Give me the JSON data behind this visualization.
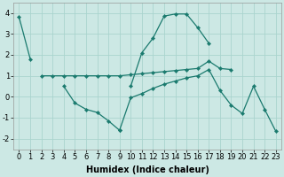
{
  "xlabel": "Humidex (Indice chaleur)",
  "background_color": "#cce8e4",
  "grid_color": "#aad4ce",
  "line_color": "#1a7a6e",
  "series": [
    {
      "x": [
        0,
        1
      ],
      "y": [
        3.8,
        1.8
      ]
    },
    {
      "x": [
        10,
        11,
        12,
        13,
        14,
        15,
        16,
        17
      ],
      "y": [
        0.5,
        2.1,
        2.8,
        3.85,
        3.95,
        3.95,
        3.3,
        2.55
      ]
    },
    {
      "x": [
        2,
        3,
        4,
        5,
        6,
        7,
        8,
        9,
        10,
        11,
        12,
        13,
        14,
        15,
        16,
        17,
        18,
        19
      ],
      "y": [
        1.0,
        1.0,
        1.0,
        1.0,
        1.0,
        1.0,
        1.0,
        1.0,
        1.05,
        1.1,
        1.15,
        1.2,
        1.25,
        1.3,
        1.35,
        1.7,
        1.35,
        1.3
      ]
    },
    {
      "x": [
        4,
        5,
        6,
        7,
        8,
        9
      ],
      "y": [
        0.5,
        -0.3,
        -0.6,
        -0.75,
        -1.15,
        -1.6
      ]
    },
    {
      "x": [
        9,
        10,
        11,
        12,
        13,
        14,
        15,
        16,
        17,
        18,
        19,
        20,
        21,
        22,
        23
      ],
      "y": [
        -1.6,
        -0.05,
        0.15,
        0.4,
        0.6,
        0.75,
        0.9,
        1.0,
        1.3,
        0.3,
        -0.4,
        -0.8,
        0.5,
        -0.6,
        -1.65
      ]
    }
  ],
  "ylim": [
    -2.5,
    4.5
  ],
  "xlim": [
    -0.5,
    23.5
  ],
  "yticks": [
    -2,
    -1,
    0,
    1,
    2,
    3,
    4
  ],
  "xticks": [
    0,
    1,
    2,
    3,
    4,
    5,
    6,
    7,
    8,
    9,
    10,
    11,
    12,
    13,
    14,
    15,
    16,
    17,
    18,
    19,
    20,
    21,
    22,
    23
  ],
  "xlabel_fontsize": 7,
  "tick_fontsize": 6
}
